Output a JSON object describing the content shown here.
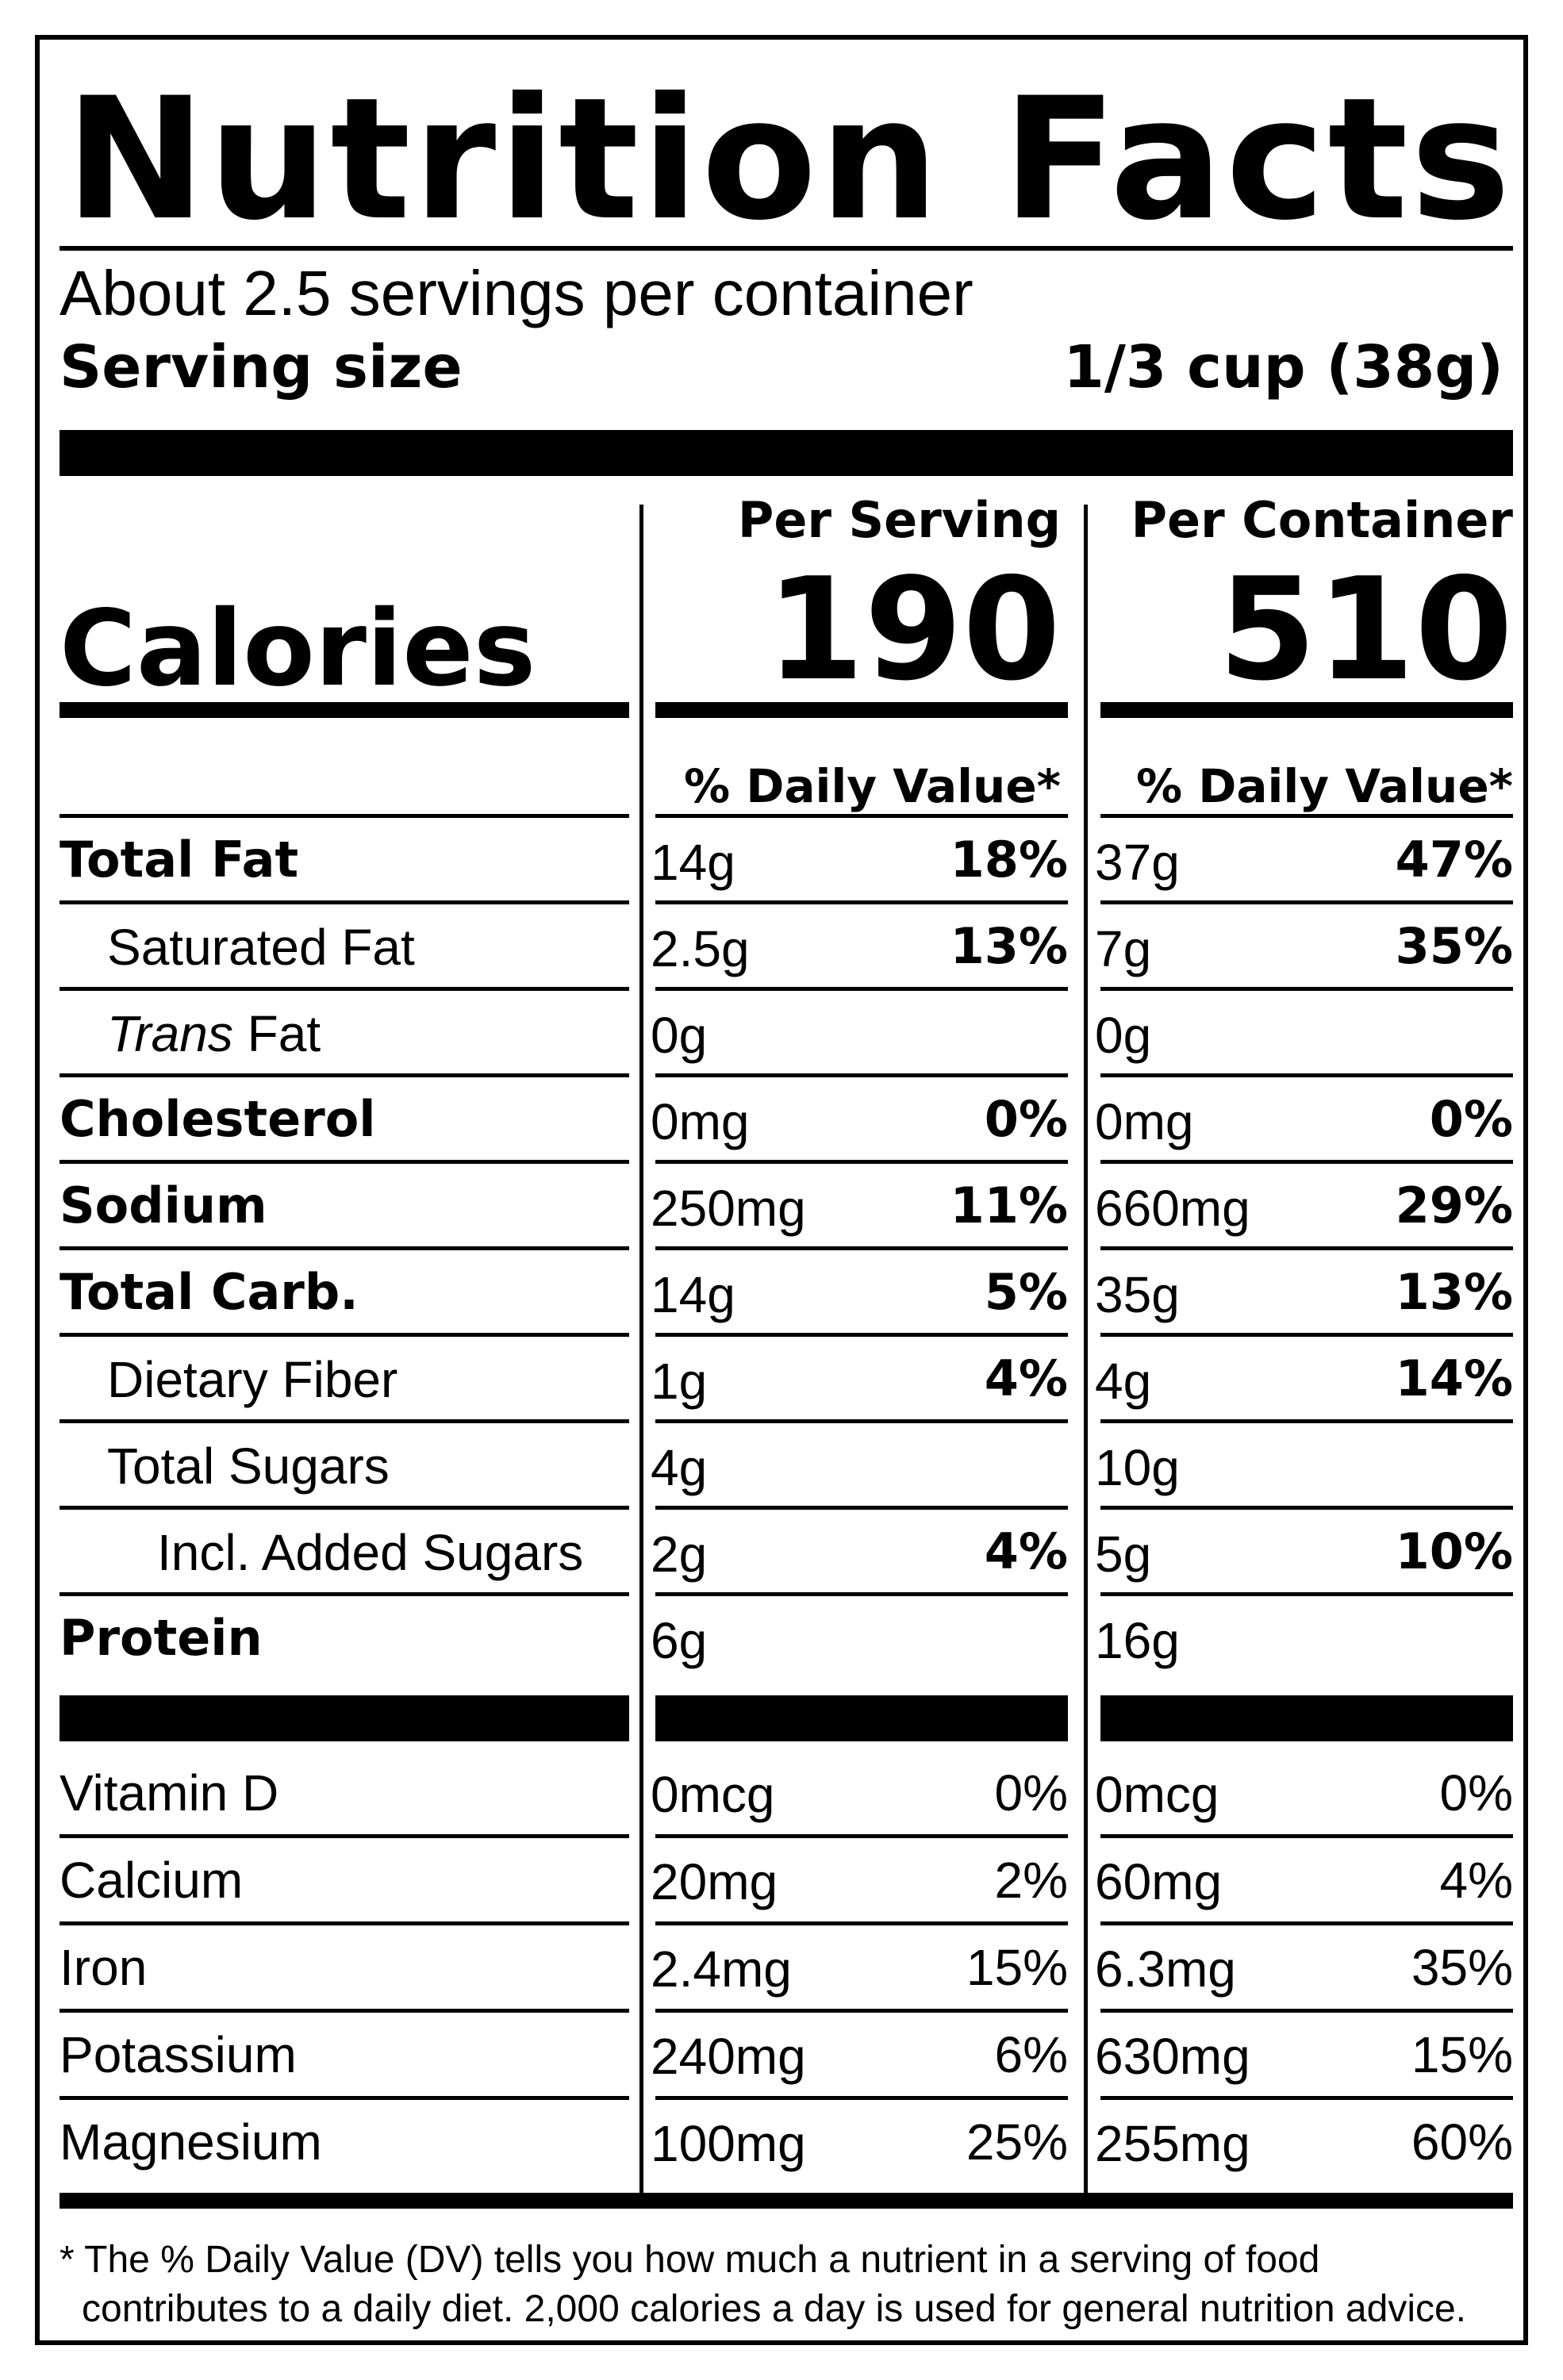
{
  "title": "Nutrition Facts",
  "servings_per_container": "About 2.5 servings per container",
  "serving_size": {
    "label": "Serving size",
    "value": "1/3 cup (38g)"
  },
  "columns": {
    "per_serving": "Per Serving",
    "per_container": "Per Container"
  },
  "calories": {
    "label": "Calories",
    "per_serving": "190",
    "per_container": "510"
  },
  "daily_value_header": "% Daily Value*",
  "nutrients": [
    {
      "name": "Total Fat",
      "bold": true,
      "indent": 0,
      "serving_amount": "14g",
      "serving_dv": "18%",
      "container_amount": "37g",
      "container_dv": "47%"
    },
    {
      "name": "Saturated Fat",
      "bold": false,
      "indent": 1,
      "serving_amount": "2.5g",
      "serving_dv": "13%",
      "container_amount": "7g",
      "container_dv": "35%"
    },
    {
      "name_italic": "Trans",
      "name": " Fat",
      "bold": false,
      "indent": 1,
      "serving_amount": "0g",
      "serving_dv": "",
      "container_amount": "0g",
      "container_dv": ""
    },
    {
      "name": "Cholesterol",
      "bold": true,
      "indent": 0,
      "serving_amount": "0mg",
      "serving_dv": "0%",
      "container_amount": "0mg",
      "container_dv": "0%"
    },
    {
      "name": "Sodium",
      "bold": true,
      "indent": 0,
      "serving_amount": "250mg",
      "serving_dv": "11%",
      "container_amount": "660mg",
      "container_dv": "29%"
    },
    {
      "name": "Total Carb.",
      "bold": true,
      "indent": 0,
      "serving_amount": "14g",
      "serving_dv": "5%",
      "container_amount": "35g",
      "container_dv": "13%"
    },
    {
      "name": "Dietary Fiber",
      "bold": false,
      "indent": 1,
      "serving_amount": "1g",
      "serving_dv": "4%",
      "container_amount": "4g",
      "container_dv": "14%"
    },
    {
      "name": "Total Sugars",
      "bold": false,
      "indent": 1,
      "serving_amount": "4g",
      "serving_dv": "",
      "container_amount": "10g",
      "container_dv": ""
    },
    {
      "name": "Incl. Added Sugars",
      "bold": false,
      "indent": 2,
      "serving_amount": "2g",
      "serving_dv": "4%",
      "container_amount": "5g",
      "container_dv": "10%"
    },
    {
      "name": "Protein",
      "bold": true,
      "indent": 0,
      "serving_amount": "6g",
      "serving_dv": "",
      "container_amount": "16g",
      "container_dv": ""
    }
  ],
  "vitamins": [
    {
      "name": "Vitamin D",
      "serving_amount": "0mcg",
      "serving_dv": "0%",
      "container_amount": "0mcg",
      "container_dv": "0%"
    },
    {
      "name": "Calcium",
      "serving_amount": "20mg",
      "serving_dv": "2%",
      "container_amount": "60mg",
      "container_dv": "4%"
    },
    {
      "name": "Iron",
      "serving_amount": "2.4mg",
      "serving_dv": "15%",
      "container_amount": "6.3mg",
      "container_dv": "35%"
    },
    {
      "name": "Potassium",
      "serving_amount": "240mg",
      "serving_dv": "6%",
      "container_amount": "630mg",
      "container_dv": "15%"
    },
    {
      "name": "Magnesium",
      "serving_amount": "100mg",
      "serving_dv": "25%",
      "container_amount": "255mg",
      "container_dv": "60%"
    }
  ],
  "footnote": {
    "line1": "* The % Daily Value (DV) tells you how much a nutrient in a serving of food",
    "line2": "contributes to a daily diet. 2,000 calories a day is used for general nutrition advice."
  }
}
